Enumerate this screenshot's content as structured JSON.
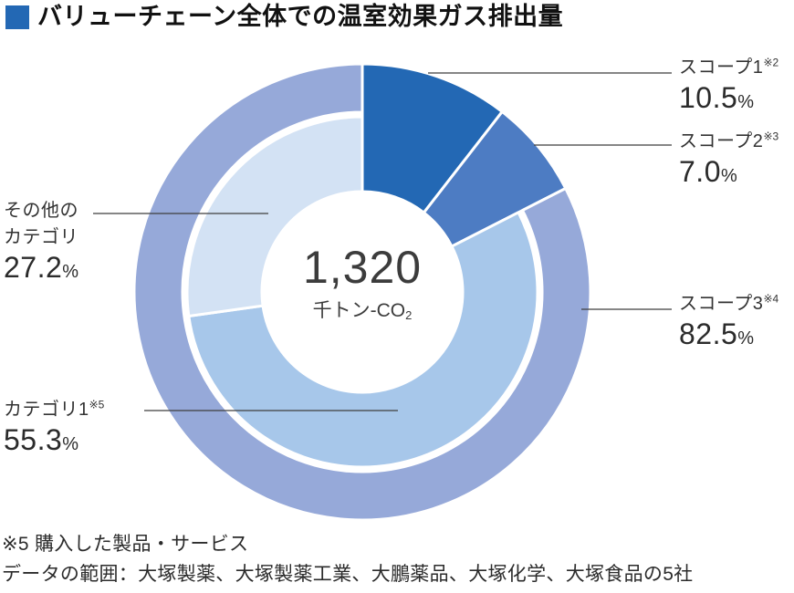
{
  "header": {
    "title": "バリューチェーン全体での温室効果ガス排出量",
    "accent_color": "#2368b4"
  },
  "chart_data": {
    "type": "pie",
    "variant": "double-ring-donut",
    "title": "バリューチェーン全体での温室効果ガス排出量",
    "direction": "clockwise",
    "start_angle_deg": 0,
    "center": {
      "value": "1,320",
      "unit_main": "千トン-CO",
      "unit_sub": "2",
      "unit_full": "千トン-CO2"
    },
    "total": {
      "value": 1320,
      "unit": "千トン-CO2"
    },
    "outer_ring": {
      "description": "スコープ別排出量",
      "segments": [
        {
          "id": "scope1",
          "label": "スコープ1",
          "note_ref": "※2",
          "percent": 10.5,
          "color": "#2368b4",
          "span": "full"
        },
        {
          "id": "scope2",
          "label": "スコープ2",
          "note_ref": "※3",
          "percent": 7.0,
          "color": "#4d7cc3",
          "span": "full"
        },
        {
          "id": "scope3",
          "label": "スコープ3",
          "note_ref": "※4",
          "percent": 82.5,
          "color": "#96a9d9",
          "span": "outer"
        }
      ]
    },
    "inner_ring": {
      "description": "スコープ3の内訳",
      "segments": [
        {
          "id": "category1",
          "label": "カテゴリ1",
          "note_ref": "※5",
          "percent": 55.3,
          "color": "#a7c7ea",
          "span": "inner"
        },
        {
          "id": "other_categories",
          "label": "その他のカテゴリ",
          "note_ref": "",
          "percent": 27.2,
          "color": "#d3e2f4",
          "span": "inner"
        }
      ]
    },
    "legend_position": "callouts"
  },
  "callouts": {
    "scope1": {
      "name": "スコープ1",
      "sup": "※2",
      "value": "10.5",
      "unit": "%"
    },
    "scope2": {
      "name": "スコープ2",
      "sup": "※3",
      "value": "7.0",
      "unit": "%"
    },
    "scope3": {
      "name": "スコープ3",
      "sup": "※4",
      "value": "82.5",
      "unit": "%"
    },
    "other_categories": {
      "name_line1": "その他の",
      "name_line2": "カテゴリ",
      "value": "27.2",
      "unit": "%"
    },
    "category1": {
      "name": "カテゴリ1",
      "sup": "※5",
      "value": "55.3",
      "unit": "%"
    }
  },
  "footnotes": {
    "line1": "※5 購入した製品・サービス",
    "line2": "データの範囲：大塚製薬、大塚製薬工業、大鵬薬品、大塚化学、大塚食品の5社"
  }
}
